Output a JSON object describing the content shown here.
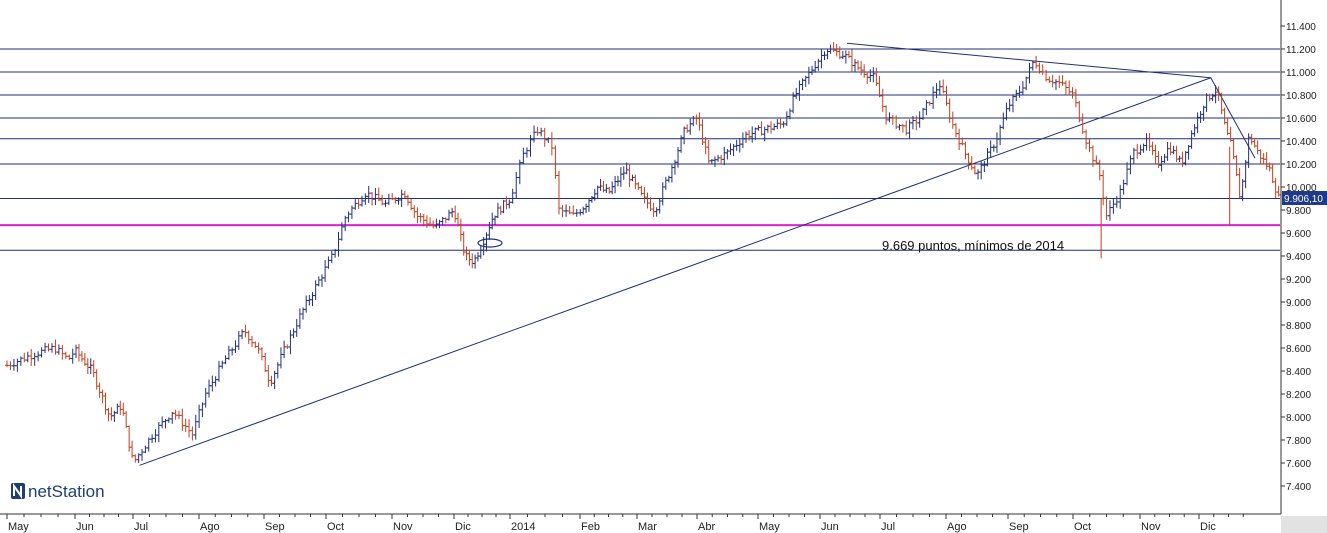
{
  "chart_data": {
    "type": "ohlc",
    "ylim": [
      7200,
      11600
    ],
    "y_ticks": [
      7400,
      7600,
      7800,
      8000,
      8200,
      8400,
      8600,
      8800,
      9000,
      9200,
      9400,
      9600,
      9800,
      10000,
      10200,
      10400,
      10600,
      10800,
      11000,
      11200,
      11400
    ],
    "y_tick_labels": [
      "7.400",
      "7.600",
      "7.800",
      "8.000",
      "8.200",
      "8.400",
      "8.600",
      "8.800",
      "9.000",
      "9.200",
      "9.400",
      "9.600",
      "9.800",
      "10.000",
      "10.200",
      "10.400",
      "10.600",
      "10.800",
      "11.000",
      "11.200",
      "11.400"
    ],
    "months": [
      "May",
      "Jun",
      "Jul",
      "Ago",
      "Sep",
      "Oct",
      "Nov",
      "Dic",
      "2014",
      "Feb",
      "Mar",
      "Abr",
      "May",
      "Jun",
      "Jul",
      "Ago",
      "Sep",
      "Oct",
      "Nov",
      "Dic"
    ],
    "horizontal_levels": [
      11200,
      11000,
      10800,
      10600,
      10420,
      10200,
      9900,
      9450
    ],
    "support_level": 9669,
    "trendlines": [
      {
        "name": "uptrend",
        "from": {
          "month": 2.1,
          "value": 7580
        },
        "to": {
          "month": 19.2,
          "value": 10950
        }
      },
      {
        "name": "downtrend-top",
        "from": {
          "month": 13.45,
          "value": 11250
        },
        "to": {
          "month": 19.2,
          "value": 10950
        }
      },
      {
        "name": "downtrend-steep",
        "from": {
          "month": 19.2,
          "value": 10950
        },
        "to": {
          "month": 19.95,
          "value": 10250
        }
      }
    ],
    "path_points": [
      [
        0.0,
        8450
      ],
      [
        0.4,
        8550
      ],
      [
        0.7,
        8600
      ],
      [
        0.9,
        8500
      ],
      [
        1.0,
        8580
      ],
      [
        1.3,
        8400
      ],
      [
        1.6,
        8000
      ],
      [
        1.8,
        8100
      ],
      [
        2.0,
        7600
      ],
      [
        2.3,
        7850
      ],
      [
        2.6,
        8050
      ],
      [
        2.9,
        7850
      ],
      [
        3.1,
        8200
      ],
      [
        3.4,
        8500
      ],
      [
        3.7,
        8750
      ],
      [
        3.9,
        8600
      ],
      [
        4.1,
        8300
      ],
      [
        4.3,
        8550
      ],
      [
        4.6,
        8900
      ],
      [
        4.9,
        9200
      ],
      [
        5.1,
        9400
      ],
      [
        5.3,
        9750
      ],
      [
        5.6,
        9950
      ],
      [
        5.9,
        9850
      ],
      [
        6.2,
        9950
      ],
      [
        6.4,
        9750
      ],
      [
        6.7,
        9650
      ],
      [
        7.0,
        9800
      ],
      [
        7.2,
        9400
      ],
      [
        7.35,
        9350
      ],
      [
        7.5,
        9500
      ],
      [
        7.7,
        9750
      ],
      [
        8.0,
        9900
      ],
      [
        8.2,
        10300
      ],
      [
        8.4,
        10500
      ],
      [
        8.6,
        10350
      ],
      [
        8.7,
        9800
      ],
      [
        8.9,
        9750
      ],
      [
        9.1,
        9850
      ],
      [
        9.3,
        10000
      ],
      [
        9.5,
        9950
      ],
      [
        9.8,
        10150
      ],
      [
        10.1,
        9900
      ],
      [
        10.3,
        9800
      ],
      [
        10.6,
        10200
      ],
      [
        10.8,
        10500
      ],
      [
        11.0,
        10600
      ],
      [
        11.2,
        10200
      ],
      [
        11.5,
        10300
      ],
      [
        11.8,
        10450
      ],
      [
        12.1,
        10500
      ],
      [
        12.4,
        10550
      ],
      [
        12.6,
        10800
      ],
      [
        12.9,
        11050
      ],
      [
        13.1,
        11200
      ],
      [
        13.4,
        11150
      ],
      [
        13.6,
        11050
      ],
      [
        13.9,
        10950
      ],
      [
        14.1,
        10600
      ],
      [
        14.4,
        10500
      ],
      [
        14.6,
        10600
      ],
      [
        14.9,
        10900
      ],
      [
        15.1,
        10550
      ],
      [
        15.3,
        10300
      ],
      [
        15.5,
        10100
      ],
      [
        15.8,
        10400
      ],
      [
        16.0,
        10700
      ],
      [
        16.2,
        10850
      ],
      [
        16.4,
        11100
      ],
      [
        16.6,
        10950
      ],
      [
        16.8,
        10900
      ],
      [
        17.0,
        10800
      ],
      [
        17.2,
        10400
      ],
      [
        17.4,
        10100
      ],
      [
        17.5,
        9750
      ],
      [
        17.7,
        9950
      ],
      [
        17.9,
        10300
      ],
      [
        18.1,
        10400
      ],
      [
        18.3,
        10200
      ],
      [
        18.5,
        10350
      ],
      [
        18.7,
        10200
      ],
      [
        18.9,
        10500
      ],
      [
        19.1,
        10750
      ],
      [
        19.3,
        10850
      ],
      [
        19.45,
        10500
      ],
      [
        19.55,
        10350
      ],
      [
        19.7,
        9900
      ],
      [
        19.85,
        10450
      ],
      [
        20.0,
        10300
      ],
      [
        20.2,
        10150
      ],
      [
        20.35,
        9906
      ]
    ],
    "spikes": [
      {
        "month": 17.42,
        "high": 9900,
        "low": 9380
      },
      {
        "month": 19.52,
        "high": 10350,
        "low": 9669
      }
    ],
    "last_price_label": "9.906,10",
    "annotation": "9.669 puntos, mínimos de 2014",
    "colors": {
      "up_bar": "#1f2f7a",
      "down_bar": "#c0401e",
      "grid_line": "#1f2f7a",
      "support_line": "#e020d8",
      "price_tag_bg": "#1f3a8a"
    }
  },
  "logo": {
    "text": "netStation",
    "icon": "netstation-logo-icon"
  }
}
